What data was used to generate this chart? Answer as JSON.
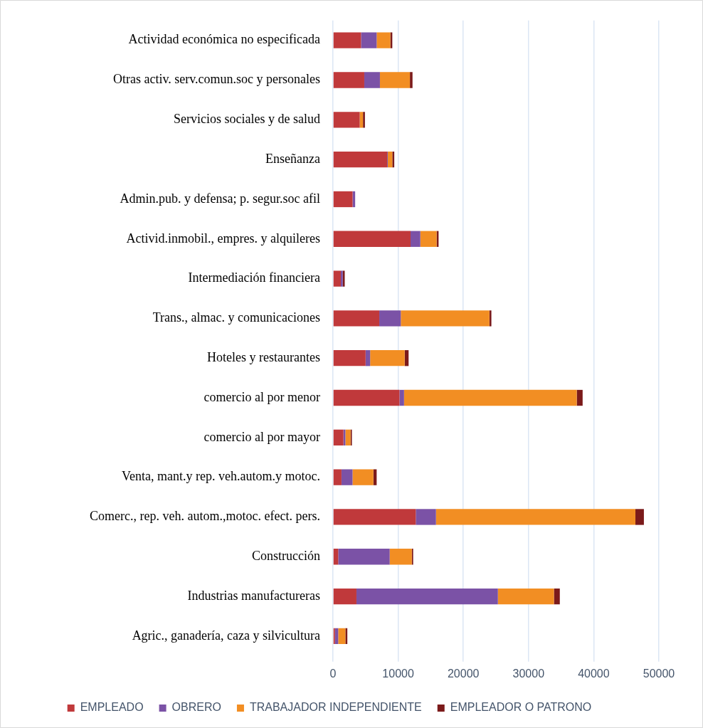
{
  "chart_data": {
    "type": "bar",
    "orientation": "horizontal",
    "stacked": true,
    "categories": [
      "Actividad económica no especificada",
      "Otras activ. serv.comun.soc y personales",
      "Servicios sociales y de salud",
      "Enseñanza",
      "Admin.pub. y defensa; p. segur.soc afil",
      "Activid.inmobil., empres. y alquileres",
      "Intermediación financiera",
      "Trans., almac. y comunicaciones",
      "Hoteles y restaurantes",
      "comercio al por menor",
      "comercio al por mayor",
      "Venta, mant.y rep. veh.autom.y motoc.",
      "Comerc., rep. veh. autom.,motoc. efect. pers.",
      "Construcción",
      "Industrias manufactureras",
      "Agric., ganadería, caza y silvicultura"
    ],
    "series": [
      {
        "name": "EMPLEADO",
        "color": "#c0393b",
        "values": [
          4300,
          4800,
          4100,
          8300,
          3000,
          11900,
          1200,
          7100,
          5000,
          10200,
          1600,
          1300,
          12700,
          800,
          3600,
          300
        ]
      },
      {
        "name": "OBRERO",
        "color": "#7b52a6",
        "values": [
          2400,
          2400,
          null,
          100,
          400,
          1500,
          300,
          3300,
          700,
          700,
          300,
          1700,
          3100,
          7900,
          21700,
          500
        ]
      },
      {
        "name": "TRABAJADOR INDEPENDIENTE",
        "color": "#f28e23",
        "values": [
          2100,
          4600,
          500,
          700,
          0,
          2500,
          0,
          13600,
          5300,
          26500,
          800,
          3200,
          30600,
          3400,
          8600,
          1100
        ]
      },
      {
        "name": "EMPLEADOR O PATRONO",
        "color": "#7b1a1a",
        "values": [
          300,
          400,
          300,
          300,
          0,
          300,
          300,
          300,
          600,
          900,
          200,
          500,
          1300,
          200,
          900,
          300
        ]
      }
    ],
    "xlim": [
      0,
      50000
    ],
    "xticks": [
      0,
      10000,
      20000,
      30000,
      40000,
      50000
    ],
    "grid": "x",
    "legend": "bottom"
  }
}
